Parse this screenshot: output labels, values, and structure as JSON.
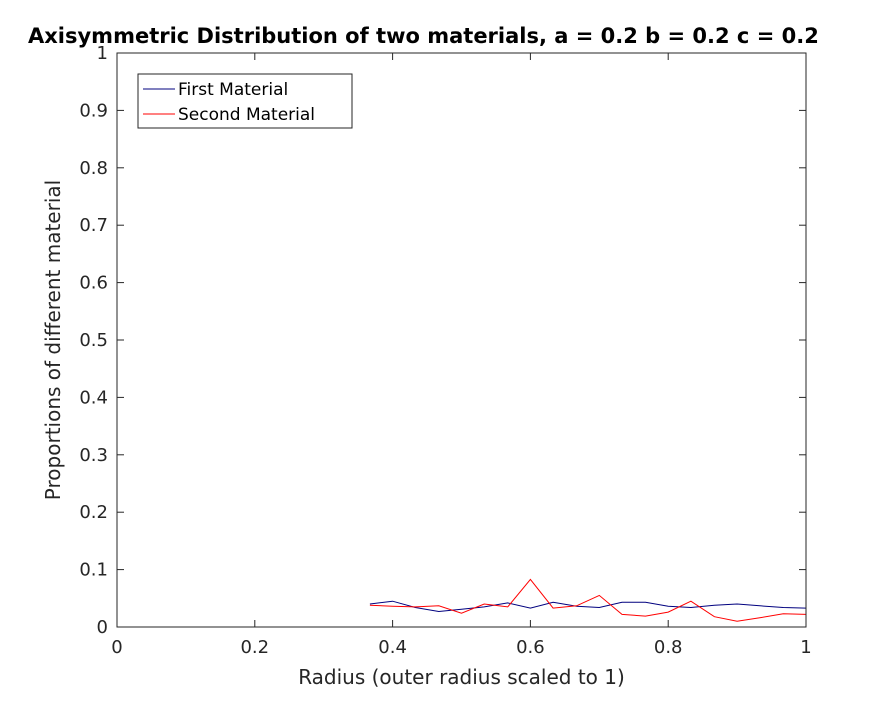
{
  "chart_data": {
    "type": "line",
    "title": "Axisymmetric Distribution of two materials, a = 0.2 b = 0.2 c = 0.2",
    "xlabel": "Radius (outer radius scaled to 1)",
    "ylabel": "Proportions of different material",
    "xlim": [
      0,
      1
    ],
    "ylim": [
      0,
      1
    ],
    "xticks": [
      "0",
      "0.2",
      "0.4",
      "0.6",
      "0.8",
      "1"
    ],
    "yticks": [
      "0",
      "0.1",
      "0.2",
      "0.3",
      "0.4",
      "0.5",
      "0.6",
      "0.7",
      "0.8",
      "0.9",
      "1"
    ],
    "grid": false,
    "legend_position": "top-left",
    "x": [
      0.367,
      0.4,
      0.433,
      0.467,
      0.5,
      0.533,
      0.567,
      0.6,
      0.633,
      0.667,
      0.7,
      0.733,
      0.767,
      0.8,
      0.833,
      0.867,
      0.9,
      0.933,
      0.967,
      1.0
    ],
    "series": [
      {
        "name": "First Material",
        "color": "#00007f",
        "values": [
          0.04,
          0.045,
          0.034,
          0.027,
          0.031,
          0.035,
          0.042,
          0.033,
          0.043,
          0.036,
          0.034,
          0.043,
          0.043,
          0.036,
          0.034,
          0.038,
          0.04,
          0.037,
          0.034,
          0.033
        ]
      },
      {
        "name": "Second Material",
        "color": "#ff0000",
        "values": [
          0.038,
          0.036,
          0.035,
          0.037,
          0.024,
          0.04,
          0.035,
          0.083,
          0.033,
          0.037,
          0.055,
          0.022,
          0.019,
          0.026,
          0.045,
          0.018,
          0.01,
          0.016,
          0.023,
          0.022
        ]
      }
    ]
  }
}
